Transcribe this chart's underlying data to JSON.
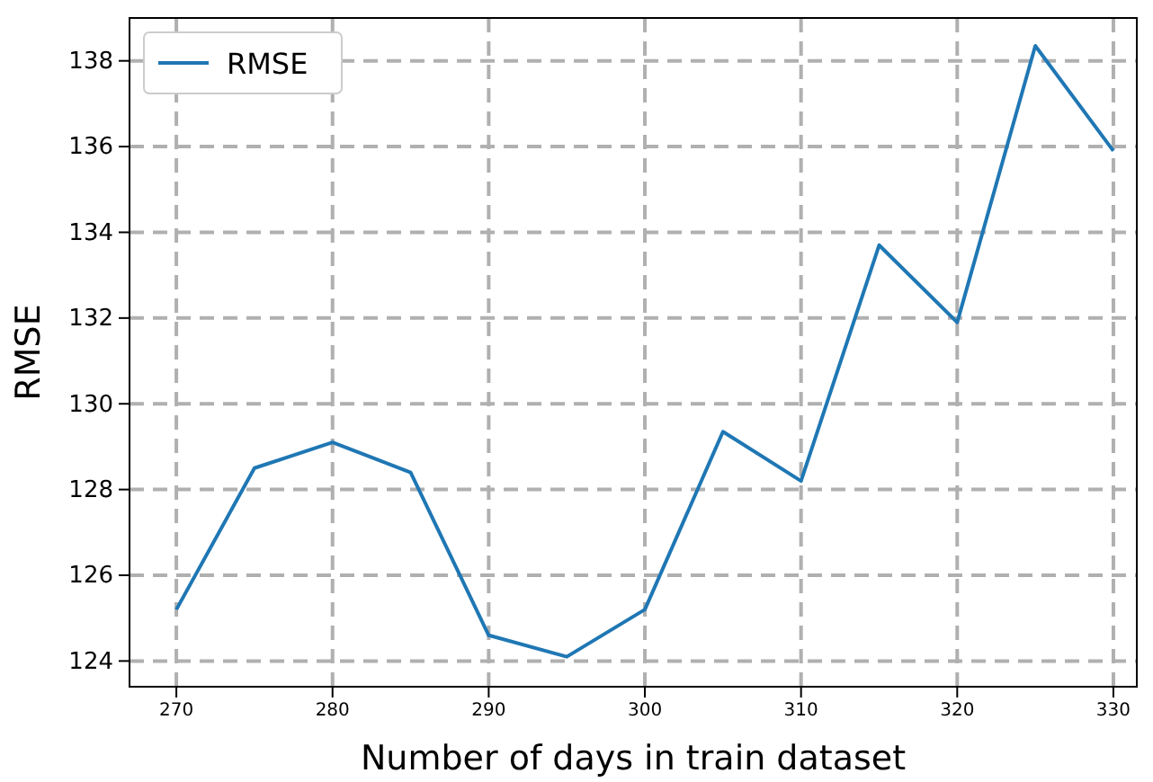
{
  "chart_data": {
    "type": "line",
    "xlabel": "Number of days in train dataset",
    "ylabel": "RMSE",
    "x": [
      270,
      275,
      280,
      285,
      290,
      295,
      300,
      305,
      310,
      315,
      320,
      325,
      330
    ],
    "series": [
      {
        "name": "RMSE",
        "color": "#1f77b4",
        "values": [
          125.2,
          128.5,
          129.1,
          128.4,
          124.6,
          124.1,
          125.2,
          129.35,
          128.2,
          133.7,
          131.9,
          138.35,
          135.9
        ]
      }
    ],
    "xlim": [
      267,
      331.5
    ],
    "xticks": [
      270,
      280,
      290,
      300,
      310,
      320,
      330
    ],
    "ylim": [
      123.4,
      139
    ],
    "yticks": [
      124,
      126,
      128,
      130,
      132,
      134,
      136,
      138
    ],
    "grid": true,
    "legend": "top left",
    "line_style": "solid",
    "marker": "none"
  }
}
